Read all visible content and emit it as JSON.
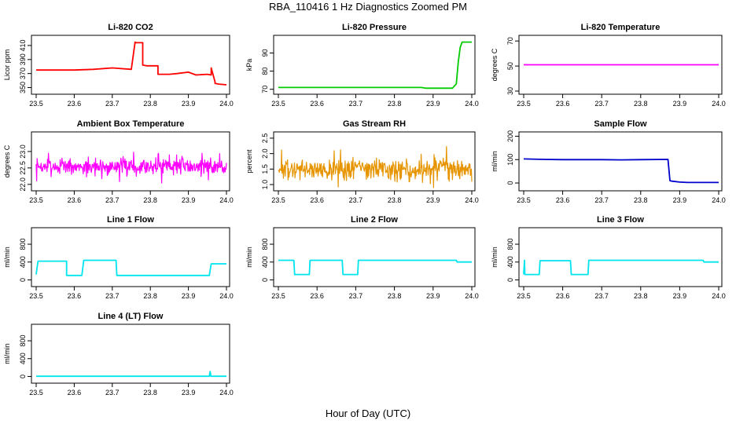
{
  "title": "RBA_110416  1 Hz Diagnostics Zoomed PM",
  "xlabel": "Hour of Day (UTC)",
  "chart_data": [
    {
      "type": "line",
      "title": "Li-820 CO2",
      "xlabel": "",
      "ylabel": "Licor ppm",
      "xlim": [
        23.5,
        24.0
      ],
      "xticks": [
        "23.5",
        "23.6",
        "23.7",
        "23.8",
        "23.9",
        "24.0"
      ],
      "ylim": [
        345,
        420
      ],
      "yticks": [
        "350",
        "370",
        "390",
        "410"
      ],
      "color": "#ff0000",
      "series": [
        {
          "x": [
            23.5,
            23.6,
            23.65,
            23.7,
            23.75,
            23.76,
            23.76,
            23.78,
            23.78,
            23.79,
            23.8,
            23.81,
            23.82,
            23.82,
            23.85,
            23.87,
            23.9,
            23.92,
            23.95,
            23.96,
            23.96,
            23.97,
            23.97,
            23.98,
            24.0
          ],
          "y": [
            375,
            375,
            376,
            378,
            376,
            415,
            414,
            414,
            382,
            381,
            381,
            381,
            381,
            369,
            369,
            370,
            372,
            368,
            369,
            368,
            378,
            358,
            356,
            355,
            354
          ]
        }
      ]
    },
    {
      "type": "line",
      "title": "Li-820 Pressure",
      "xlabel": "",
      "ylabel": "kPa",
      "xlim": [
        23.5,
        24.0
      ],
      "xticks": [
        "23.5",
        "23.6",
        "23.7",
        "23.8",
        "23.9",
        "24.0"
      ],
      "ylim": [
        69,
        98
      ],
      "yticks": [
        "70",
        "80",
        "90"
      ],
      "color": "#00cc00",
      "series": [
        {
          "x": [
            23.5,
            23.6,
            23.7,
            23.8,
            23.87,
            23.88,
            23.9,
            23.95,
            23.96,
            23.965,
            23.97,
            23.975,
            23.98,
            24.0
          ],
          "y": [
            71,
            71,
            71,
            71,
            71,
            70.6,
            70.6,
            70.6,
            73,
            85,
            93,
            96,
            96,
            96
          ]
        }
      ]
    },
    {
      "type": "line",
      "title": "Li-820 Temperature",
      "xlabel": "",
      "ylabel": "degrees C",
      "xlim": [
        23.5,
        24.0
      ],
      "xticks": [
        "23.5",
        "23.6",
        "23.7",
        "23.8",
        "23.9",
        "24.0"
      ],
      "ylim": [
        30,
        72
      ],
      "yticks": [
        "30",
        "50",
        "70"
      ],
      "color": "#ff00ff",
      "series": [
        {
          "x": [
            23.5,
            24.0
          ],
          "y": [
            51,
            51
          ]
        }
      ]
    },
    {
      "type": "line",
      "title": "Ambient Box Temperature",
      "xlabel": "",
      "ylabel": "degrees C",
      "xlim": [
        23.5,
        24.0
      ],
      "xticks": [
        "23.5",
        "23.6",
        "23.7",
        "23.8",
        "23.9",
        "24.0"
      ],
      "ylim": [
        21.9,
        23.5
      ],
      "yticks": [
        "22.0",
        "22.5",
        "23.0"
      ],
      "color": "#ff00ff",
      "noise": {
        "mean": 22.55,
        "amp": 0.45,
        "seed": 7,
        "n": 420
      },
      "series": [
        {
          "x": [
            23.5,
            24.0
          ],
          "y": [
            22.55,
            22.55
          ]
        }
      ]
    },
    {
      "type": "line",
      "title": "Gas Stream RH",
      "xlabel": "",
      "ylabel": "percent",
      "xlim": [
        23.5,
        24.0
      ],
      "xticks": [
        "23.5",
        "23.6",
        "23.7",
        "23.8",
        "23.9",
        "24.0"
      ],
      "ylim": [
        0.9,
        2.6
      ],
      "yticks": [
        "1.0",
        "1.5",
        "2.0",
        "2.5"
      ],
      "color": "#e69500",
      "noise": {
        "mean": 1.5,
        "amp": 0.55,
        "seed": 13,
        "n": 420
      },
      "series": [
        {
          "x": [
            23.5,
            24.0
          ],
          "y": [
            1.5,
            1.5
          ]
        }
      ]
    },
    {
      "type": "line",
      "title": "Sample Flow",
      "xlabel": "",
      "ylabel": "ml/min",
      "xlim": [
        23.5,
        24.0
      ],
      "xticks": [
        "23.5",
        "23.6",
        "23.7",
        "23.8",
        "23.9",
        "24.0"
      ],
      "ylim": [
        -20,
        205
      ],
      "yticks": [
        "0",
        "100",
        "200"
      ],
      "color": "#0000cc",
      "series": [
        {
          "x": [
            23.5,
            23.55,
            23.6,
            23.7,
            23.75,
            23.8,
            23.87,
            23.875,
            23.88,
            23.9,
            23.92,
            23.95,
            24.0
          ],
          "y": [
            103,
            101,
            100,
            100,
            99,
            100,
            101,
            10,
            8,
            4,
            2,
            2,
            2
          ]
        }
      ]
    },
    {
      "type": "line",
      "title": "Line 1 Flow",
      "xlabel": "",
      "ylabel": "ml/min",
      "xlim": [
        23.5,
        24.0
      ],
      "xticks": [
        "23.5",
        "23.6",
        "23.7",
        "23.8",
        "23.9",
        "24.0"
      ],
      "ylim": [
        -80,
        1100
      ],
      "yticks": [
        "0",
        "400",
        "800"
      ],
      "color": "#00e5ee",
      "series": [
        {
          "x": [
            23.5,
            23.503,
            23.505,
            23.58,
            23.58,
            23.62,
            23.625,
            23.71,
            23.712,
            23.8,
            23.9,
            23.955,
            23.96,
            24.0
          ],
          "y": [
            120,
            320,
            420,
            420,
            100,
            100,
            440,
            440,
            100,
            100,
            100,
            100,
            360,
            360
          ]
        }
      ]
    },
    {
      "type": "line",
      "title": "Line 2 Flow",
      "xlabel": "",
      "ylabel": "ml/min",
      "xlim": [
        23.5,
        24.0
      ],
      "xticks": [
        "23.5",
        "23.6",
        "23.7",
        "23.8",
        "23.9",
        "24.0"
      ],
      "ylim": [
        -80,
        1100
      ],
      "yticks": [
        "0",
        "400",
        "800"
      ],
      "color": "#00e5ee",
      "series": [
        {
          "x": [
            23.5,
            23.54,
            23.542,
            23.58,
            23.582,
            23.665,
            23.667,
            23.705,
            23.707,
            23.8,
            23.9,
            23.96,
            23.962,
            24.0
          ],
          "y": [
            440,
            440,
            120,
            120,
            440,
            440,
            120,
            120,
            440,
            440,
            440,
            440,
            400,
            400
          ]
        }
      ]
    },
    {
      "type": "line",
      "title": "Line 3 Flow",
      "xlabel": "",
      "ylabel": "ml/min",
      "xlim": [
        23.5,
        24.0
      ],
      "xticks": [
        "23.5",
        "23.6",
        "23.7",
        "23.8",
        "23.9",
        "24.0"
      ],
      "ylim": [
        -80,
        1100
      ],
      "yticks": [
        "0",
        "400",
        "800"
      ],
      "color": "#00e5ee",
      "series": [
        {
          "x": [
            23.5,
            23.502,
            23.503,
            23.54,
            23.542,
            23.62,
            23.622,
            23.665,
            23.667,
            23.8,
            23.9,
            23.96,
            23.962,
            24.0
          ],
          "y": [
            120,
            440,
            120,
            120,
            430,
            430,
            120,
            120,
            440,
            440,
            440,
            440,
            400,
            400
          ]
        }
      ]
    },
    {
      "type": "line",
      "title": "Line 4 (LT) Flow",
      "xlabel": "",
      "ylabel": "ml/min",
      "xlim": [
        23.5,
        24.0
      ],
      "xticks": [
        "23.5",
        "23.6",
        "23.7",
        "23.8",
        "23.9",
        "24.0"
      ],
      "ylim": [
        -80,
        1100
      ],
      "yticks": [
        "0",
        "400",
        "800"
      ],
      "color": "#00e5ee",
      "series": [
        {
          "x": [
            23.5,
            23.6,
            23.7,
            23.8,
            23.9,
            23.955,
            23.957,
            23.959,
            23.961,
            24.0
          ],
          "y": [
            5,
            5,
            5,
            5,
            5,
            5,
            110,
            5,
            5,
            5
          ]
        }
      ]
    }
  ]
}
